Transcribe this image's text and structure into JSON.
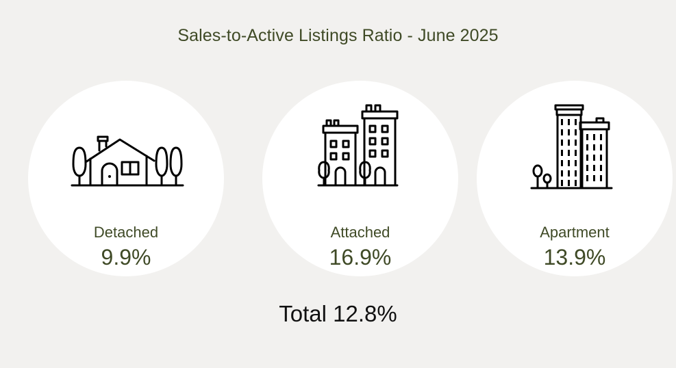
{
  "title": "Sales-to-Active Listings Ratio - June 2025",
  "categories": [
    {
      "label": "Detached",
      "value": "9.9%",
      "icon": "house-icon"
    },
    {
      "label": "Attached",
      "value": "16.9%",
      "icon": "townhouse-icon"
    },
    {
      "label": "Apartment",
      "value": "13.9%",
      "icon": "apartment-building-icon"
    }
  ],
  "total": "Total 12.8%",
  "colors": {
    "background": "#f2f1ef",
    "card": "#ffffff",
    "text_primary": "#3f4a26",
    "text_total": "#111111",
    "icon_stroke": "#000000"
  }
}
